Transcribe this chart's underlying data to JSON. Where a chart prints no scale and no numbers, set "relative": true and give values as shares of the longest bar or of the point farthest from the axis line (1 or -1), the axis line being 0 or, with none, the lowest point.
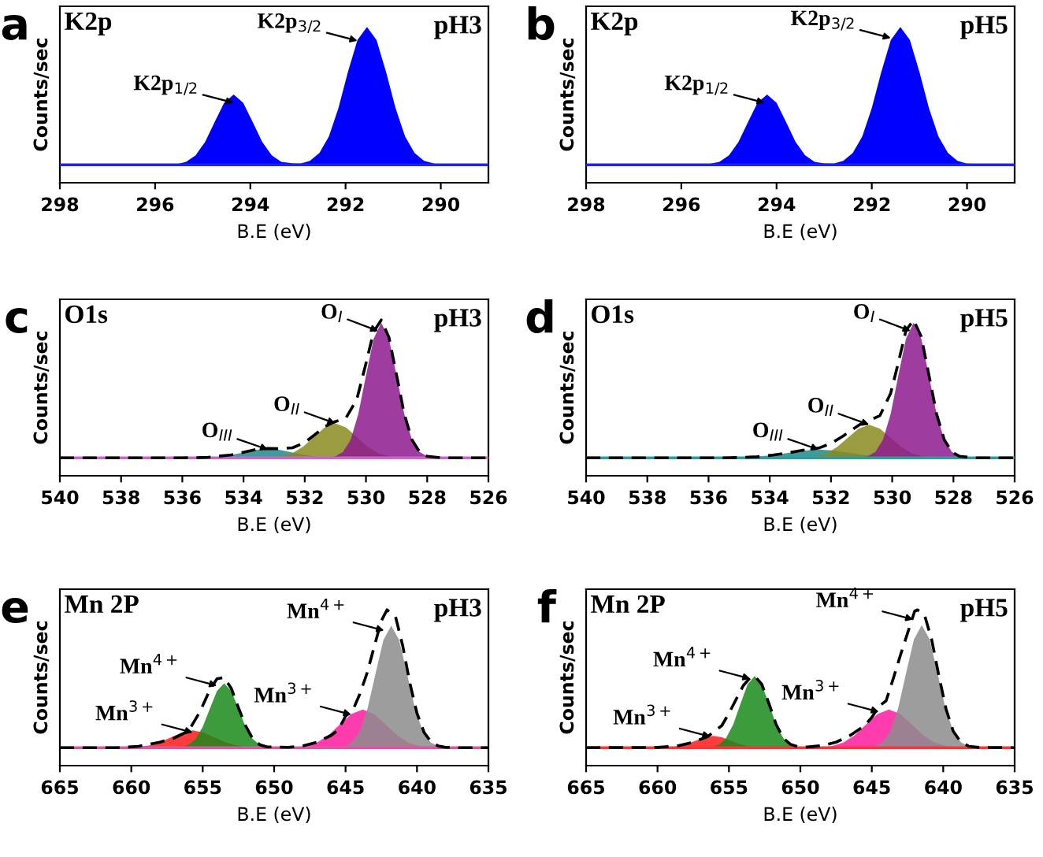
{
  "chart_data": [
    {
      "type": "area",
      "relative": true,
      "title": "K2p",
      "xlabel": "B.E (eV)",
      "ylabel": "Counts/sec",
      "xlim": [
        298,
        289
      ],
      "xticks": [
        298,
        296,
        294,
        292,
        290
      ],
      "ref_lines": [
        {
          "axis": "y",
          "value": 0,
          "color": "#2020ff"
        }
      ],
      "annotations": [
        "a",
        "pH3",
        {
          "text": "K2p$_{1/2}$",
          "x": 294.35,
          "y": 0.45
        },
        {
          "text": "K2p$_{3/2}$",
          "x": 291.75,
          "y": 0.9
        }
      ],
      "series": [
        {
          "color": "#0000ff",
          "x": [
            298,
            295.6,
            295.35,
            295.15,
            294.95,
            294.75,
            294.55,
            294.35,
            294.15,
            293.95,
            293.75,
            293.55,
            293.35,
            293.1,
            292.95,
            292.75,
            292.55,
            292.35,
            292.15,
            291.95,
            291.75,
            291.55,
            291.35,
            291.15,
            290.95,
            290.75,
            290.55,
            290.35,
            290.1,
            289
          ],
          "values": [
            0,
            0,
            0.022,
            0.069,
            0.166,
            0.31,
            0.45,
            0.51,
            0.45,
            0.31,
            0.166,
            0.069,
            0.022,
            0.01,
            0.008,
            0.029,
            0.085,
            0.206,
            0.411,
            0.674,
            0.906,
            1,
            0.906,
            0.674,
            0.411,
            0.206,
            0.085,
            0.029,
            0.006,
            0
          ]
        }
      ]
    },
    {
      "type": "area",
      "relative": true,
      "title": "K2p",
      "xlabel": "B.E (eV)",
      "ylabel": "Counts/sec",
      "xlim": [
        298,
        289
      ],
      "xticks": [
        298,
        296,
        294,
        292,
        290
      ],
      "ref_lines": [
        {
          "axis": "y",
          "value": 0,
          "color": "#2020ff"
        }
      ],
      "annotations": [
        "b",
        "pH5",
        {
          "text": "K2p$_{1/2}$",
          "x": 294.25,
          "y": 0.45
        },
        {
          "text": "K2p$_{3/2}$",
          "x": 291.6,
          "y": 0.92
        }
      ],
      "series": [
        {
          "color": "#0000ff",
          "x": [
            298,
            295.5,
            295.2,
            295.0,
            294.8,
            294.6,
            294.4,
            294.2,
            294.0,
            293.8,
            293.6,
            293.4,
            293.2,
            293.0,
            292.8,
            292.6,
            292.4,
            292.2,
            292.0,
            291.8,
            291.6,
            291.4,
            291.2,
            291.0,
            290.8,
            290.6,
            290.4,
            290.2,
            290.0,
            289
          ],
          "values": [
            0,
            0,
            0.022,
            0.069,
            0.166,
            0.31,
            0.45,
            0.51,
            0.45,
            0.31,
            0.166,
            0.069,
            0.022,
            0.01,
            0.008,
            0.029,
            0.085,
            0.206,
            0.411,
            0.674,
            0.906,
            1,
            0.906,
            0.674,
            0.411,
            0.206,
            0.085,
            0.029,
            0.008,
            0
          ]
        }
      ]
    },
    {
      "type": "area",
      "relative": true,
      "title": "O1s",
      "xlabel": "B.E (eV)",
      "ylabel": "Counts/sec",
      "xlim": [
        540,
        526
      ],
      "xticks": [
        540,
        538,
        536,
        534,
        532,
        530,
        528,
        526
      ],
      "ref_lines": [
        {
          "axis": "y",
          "value": 0,
          "color": "#cc66cc"
        }
      ],
      "annotations": [
        "c",
        "pH3",
        {
          "text": "O$_{III}$",
          "x": 533.2,
          "y": 0.06
        },
        {
          "text": "O$_{II}$",
          "x": 531.0,
          "y": 0.25
        },
        {
          "text": "O$_{I}$",
          "x": 529.6,
          "y": 0.92
        }
      ],
      "series": [
        {
          "color": "#1e8a8a",
          "x": [
            535.2,
            534.8,
            534.4,
            534.0,
            533.6,
            533.2,
            532.8,
            532.4,
            532.0,
            531.6,
            531.2
          ],
          "values": [
            0.003,
            0.009,
            0.021,
            0.039,
            0.057,
            0.065,
            0.057,
            0.039,
            0.021,
            0.009,
            0.003
          ]
        },
        {
          "color": "#8a8a1e",
          "x": [
            533.1,
            532.75,
            532.4,
            532.05,
            531.7,
            531.35,
            531.0,
            530.65,
            530.3,
            529.95,
            529.6,
            529.25,
            528.9
          ],
          "values": [
            0.003,
            0.011,
            0.034,
            0.081,
            0.152,
            0.22,
            0.25,
            0.22,
            0.152,
            0.081,
            0.034,
            0.011,
            0.003
          ]
        },
        {
          "color": "#8e1a8e",
          "x": [
            531.25,
            531.0,
            530.75,
            530.5,
            530.25,
            530.0,
            529.75,
            529.5,
            529.25,
            529.0,
            528.75,
            528.5,
            528.25,
            528.0,
            527.75
          ],
          "values": [
            0.002,
            0.011,
            0.043,
            0.132,
            0.319,
            0.595,
            0.864,
            0.98,
            0.864,
            0.595,
            0.319,
            0.132,
            0.043,
            0.011,
            0.002
          ]
        },
        {
          "type": "line",
          "line_style": "dashed",
          "color": "#000000",
          "x": [
            540,
            536,
            535.2,
            534.4,
            533.6,
            533.2,
            532.8,
            532.4,
            532.0,
            531.7,
            531.35,
            531.0,
            530.65,
            530.3,
            530.0,
            529.75,
            529.5,
            529.25,
            529.0,
            528.75,
            528.5,
            528.25,
            528.0,
            527.5,
            526
          ],
          "values": [
            0,
            0,
            0.003,
            0.021,
            0.06,
            0.068,
            0.066,
            0.073,
            0.111,
            0.163,
            0.226,
            0.263,
            0.291,
            0.424,
            0.685,
            0.915,
            1.0,
            0.875,
            0.6,
            0.319,
            0.132,
            0.043,
            0.011,
            0,
            0
          ]
        }
      ]
    },
    {
      "type": "area",
      "relative": true,
      "title": "O1s",
      "xlabel": "B.E (eV)",
      "ylabel": "Counts/sec",
      "xlim": [
        540,
        526
      ],
      "xticks": [
        540,
        538,
        536,
        534,
        532,
        530,
        528,
        526
      ],
      "ref_lines": [
        {
          "axis": "y",
          "value": 0,
          "color": "#2a9d9d"
        }
      ],
      "annotations": [
        "d",
        "pH5",
        {
          "text": "O$_{III}$",
          "x": 532.4,
          "y": 0.06
        },
        {
          "text": "O$_{II}$",
          "x": 530.75,
          "y": 0.24
        },
        {
          "text": "O$_{I}$",
          "x": 529.4,
          "y": 0.92
        }
      ],
      "series": [
        {
          "color": "#1e8a8a",
          "x": [
            534.9,
            534.4,
            533.9,
            533.4,
            532.9,
            532.4,
            531.9,
            531.4,
            530.9,
            530.4,
            529.9
          ],
          "values": [
            0.003,
            0.008,
            0.02,
            0.036,
            0.053,
            0.06,
            0.053,
            0.036,
            0.02,
            0.008,
            0.003
          ]
        },
        {
          "color": "#8a8a1e",
          "x": [
            532.85,
            532.5,
            532.15,
            531.8,
            531.45,
            531.1,
            530.75,
            530.4,
            530.05,
            529.7,
            529.35,
            529.0,
            528.65
          ],
          "values": [
            0.003,
            0.011,
            0.032,
            0.078,
            0.146,
            0.212,
            0.24,
            0.212,
            0.146,
            0.078,
            0.032,
            0.011,
            0.003
          ]
        },
        {
          "color": "#8e1a8e",
          "x": [
            531.05,
            530.8,
            530.55,
            530.3,
            530.05,
            529.8,
            529.55,
            529.3,
            529.05,
            528.8,
            528.55,
            528.3,
            528.05,
            527.8,
            527.55
          ],
          "values": [
            0.002,
            0.011,
            0.043,
            0.132,
            0.319,
            0.595,
            0.864,
            0.98,
            0.864,
            0.595,
            0.319,
            0.132,
            0.043,
            0.011,
            0.002
          ]
        },
        {
          "type": "line",
          "line_style": "dashed",
          "color": "#000000",
          "x": [
            540,
            535.5,
            534.9,
            534.4,
            533.9,
            533.4,
            532.9,
            532.4,
            532.0,
            531.6,
            531.3,
            531.0,
            530.75,
            530.4,
            530.05,
            529.8,
            529.55,
            529.3,
            529.05,
            528.8,
            528.55,
            528.3,
            528.05,
            527.8,
            527.3,
            526
          ],
          "values": [
            0,
            0,
            0.003,
            0.008,
            0.02,
            0.036,
            0.056,
            0.071,
            0.104,
            0.159,
            0.206,
            0.25,
            0.27,
            0.307,
            0.469,
            0.69,
            0.924,
            1.0,
            0.878,
            0.6,
            0.319,
            0.132,
            0.043,
            0.011,
            0,
            0
          ]
        }
      ]
    },
    {
      "type": "area",
      "relative": true,
      "title": "Mn 2P",
      "xlabel": "B.E (eV)",
      "ylabel": "Counts/sec",
      "xlim": [
        665,
        635
      ],
      "xticks": [
        665,
        660,
        655,
        650,
        645,
        640,
        635
      ],
      "ref_lines": [
        {
          "axis": "y",
          "value": 0,
          "color": "#e0559f"
        }
      ],
      "annotations": [
        "e",
        "pH3",
        {
          "text": "Mn$^{3+}$",
          "x": 655.7,
          "y": 0.11
        },
        {
          "text": "Mn$^{4+}$",
          "x": 654.0,
          "y": 0.45
        },
        {
          "text": "Mn$^{3+}$",
          "x": 644.6,
          "y": 0.24
        },
        {
          "text": "Mn$^{4+}$",
          "x": 642.3,
          "y": 0.85
        }
      ],
      "series": [
        {
          "color": "#ff1a1a",
          "x": [
            660.2,
            659.45,
            658.7,
            657.95,
            657.2,
            656.45,
            655.7,
            654.95,
            654.2,
            653.45,
            652.7,
            651.95,
            651.2
          ],
          "values": [
            0.001,
            0.006,
            0.017,
            0.041,
            0.076,
            0.11,
            0.125,
            0.11,
            0.076,
            0.041,
            0.017,
            0.006,
            0.001
          ]
        },
        {
          "color": "#1a8a1a",
          "x": [
            656.5,
            656.0,
            655.5,
            655.0,
            654.5,
            654.0,
            653.5,
            653.0,
            652.5,
            652.0,
            651.5,
            651.0,
            650.5
          ],
          "values": [
            0.005,
            0.021,
            0.063,
            0.152,
            0.283,
            0.412,
            0.467,
            0.412,
            0.283,
            0.152,
            0.063,
            0.021,
            0.005
          ]
        },
        {
          "type": "area",
          "color": "#ff1aa0",
          "x": [
            648.6,
            647.8,
            647.0,
            646.2,
            645.4,
            644.6,
            643.8,
            643.0,
            642.2,
            641.4,
            640.6,
            639.8,
            639.0
          ],
          "values": [
            0.003,
            0.012,
            0.037,
            0.09,
            0.168,
            0.244,
            0.277,
            0.244,
            0.168,
            0.09,
            0.037,
            0.012,
            0.003
          ]
        },
        {
          "color": "#8c8c8c",
          "x": [
            645.1,
            644.55,
            644.0,
            643.45,
            642.9,
            642.35,
            641.8,
            641.25,
            640.7,
            640.15,
            639.6,
            639.05,
            638.5
          ],
          "values": [
            0.01,
            0.039,
            0.12,
            0.288,
            0.538,
            0.781,
            0.886,
            0.781,
            0.538,
            0.288,
            0.12,
            0.039,
            0.01
          ]
        },
        {
          "type": "line",
          "line_style": "dashed",
          "color": "#000000",
          "x": [
            665,
            661,
            659.5,
            658,
            657,
            656,
            655.2,
            654.5,
            654,
            653.5,
            653,
            652.5,
            652,
            651.5,
            651,
            650.5,
            650,
            649,
            648,
            647,
            646,
            645.5,
            645,
            644.5,
            644,
            643.5,
            643,
            642.5,
            642.1,
            641.5,
            641,
            640.5,
            640,
            639.5,
            639,
            638.5,
            638,
            637,
            635
          ],
          "values": [
            0,
            0,
            0.01,
            0.04,
            0.07,
            0.12,
            0.26,
            0.42,
            0.5,
            0.51,
            0.43,
            0.29,
            0.16,
            0.065,
            0.022,
            0.006,
            0.005,
            0.003,
            0.013,
            0.04,
            0.09,
            0.13,
            0.23,
            0.27,
            0.39,
            0.54,
            0.73,
            0.92,
            1.0,
            0.95,
            0.74,
            0.47,
            0.25,
            0.11,
            0.04,
            0.012,
            0.003,
            0,
            0
          ]
        }
      ]
    },
    {
      "type": "area",
      "relative": true,
      "title": "Mn 2P",
      "xlabel": "B.E (eV)",
      "ylabel": "Counts/sec",
      "xlim": [
        665,
        635
      ],
      "xticks": [
        665,
        660,
        655,
        650,
        645,
        640,
        635
      ],
      "ref_lines": [
        {
          "axis": "y",
          "value": 0,
          "color": "#ff3333"
        }
      ],
      "annotations": [
        "f",
        "pH5",
        {
          "text": "Mn$^{3+}$",
          "x": 656.3,
          "y": 0.08
        },
        {
          "text": "Mn$^{4+}$",
          "x": 653.5,
          "y": 0.5
        },
        {
          "text": "Mn$^{3+}$",
          "x": 644.5,
          "y": 0.26
        },
        {
          "text": "Mn$^{4+}$",
          "x": 642.1,
          "y": 0.93
        }
      ],
      "series": [
        {
          "color": "#ff1a1a",
          "x": [
            659.7,
            659.1,
            658.5,
            657.9,
            657.3,
            656.7,
            656.1,
            655.5,
            654.9,
            654.3,
            653.7,
            653.1,
            652.5
          ],
          "values": [
            0.001,
            0.004,
            0.012,
            0.028,
            0.052,
            0.076,
            0.086,
            0.076,
            0.052,
            0.028,
            0.012,
            0.004,
            0.001
          ]
        },
        {
          "color": "#1a8a1a",
          "x": [
            656.2,
            655.7,
            655.2,
            654.7,
            654.2,
            653.7,
            653.2,
            652.7,
            652.2,
            651.7,
            651.2,
            650.7,
            650.2
          ],
          "values": [
            0.006,
            0.023,
            0.07,
            0.169,
            0.315,
            0.459,
            0.52,
            0.459,
            0.315,
            0.169,
            0.07,
            0.023,
            0.006
          ]
        },
        {
          "type": "area",
          "color": "#ff1aa0",
          "x": [
            648.6,
            647.8,
            647.0,
            646.2,
            645.4,
            644.6,
            643.8,
            643.0,
            642.2,
            641.4,
            640.6,
            639.8,
            639.0
          ],
          "values": [
            0.003,
            0.012,
            0.037,
            0.09,
            0.168,
            0.244,
            0.277,
            0.244,
            0.168,
            0.09,
            0.037,
            0.012,
            0.003
          ]
        },
        {
          "color": "#8c8c8c",
          "x": [
            644.8,
            644.25,
            643.7,
            643.15,
            642.6,
            642.05,
            641.5,
            640.95,
            640.4,
            639.85,
            639.3,
            638.75,
            638.2
          ],
          "values": [
            0.01,
            0.039,
            0.121,
            0.289,
            0.541,
            0.785,
            0.89,
            0.785,
            0.541,
            0.289,
            0.121,
            0.039,
            0.01
          ]
        },
        {
          "type": "line",
          "line_style": "dashed",
          "color": "#000000",
          "x": [
            665,
            660,
            658.5,
            657.5,
            656.5,
            655.5,
            655,
            654.5,
            654,
            653.5,
            653.2,
            652.7,
            652.2,
            651.7,
            651.2,
            650.7,
            650.2,
            649.5,
            648.5,
            647.5,
            646.5,
            645.5,
            645,
            644.5,
            644,
            643.5,
            643,
            642.5,
            642,
            641.8,
            641.3,
            640.8,
            640.3,
            639.8,
            639.3,
            638.8,
            638.2,
            637.5,
            635
          ],
          "values": [
            0,
            0.002,
            0.015,
            0.04,
            0.08,
            0.16,
            0.25,
            0.35,
            0.45,
            0.51,
            0.52,
            0.46,
            0.32,
            0.17,
            0.07,
            0.025,
            0.008,
            0.005,
            0.015,
            0.04,
            0.09,
            0.16,
            0.22,
            0.3,
            0.34,
            0.5,
            0.67,
            0.83,
            0.99,
            1.0,
            0.96,
            0.78,
            0.52,
            0.28,
            0.12,
            0.045,
            0.01,
            0.002,
            0
          ]
        }
      ]
    }
  ]
}
